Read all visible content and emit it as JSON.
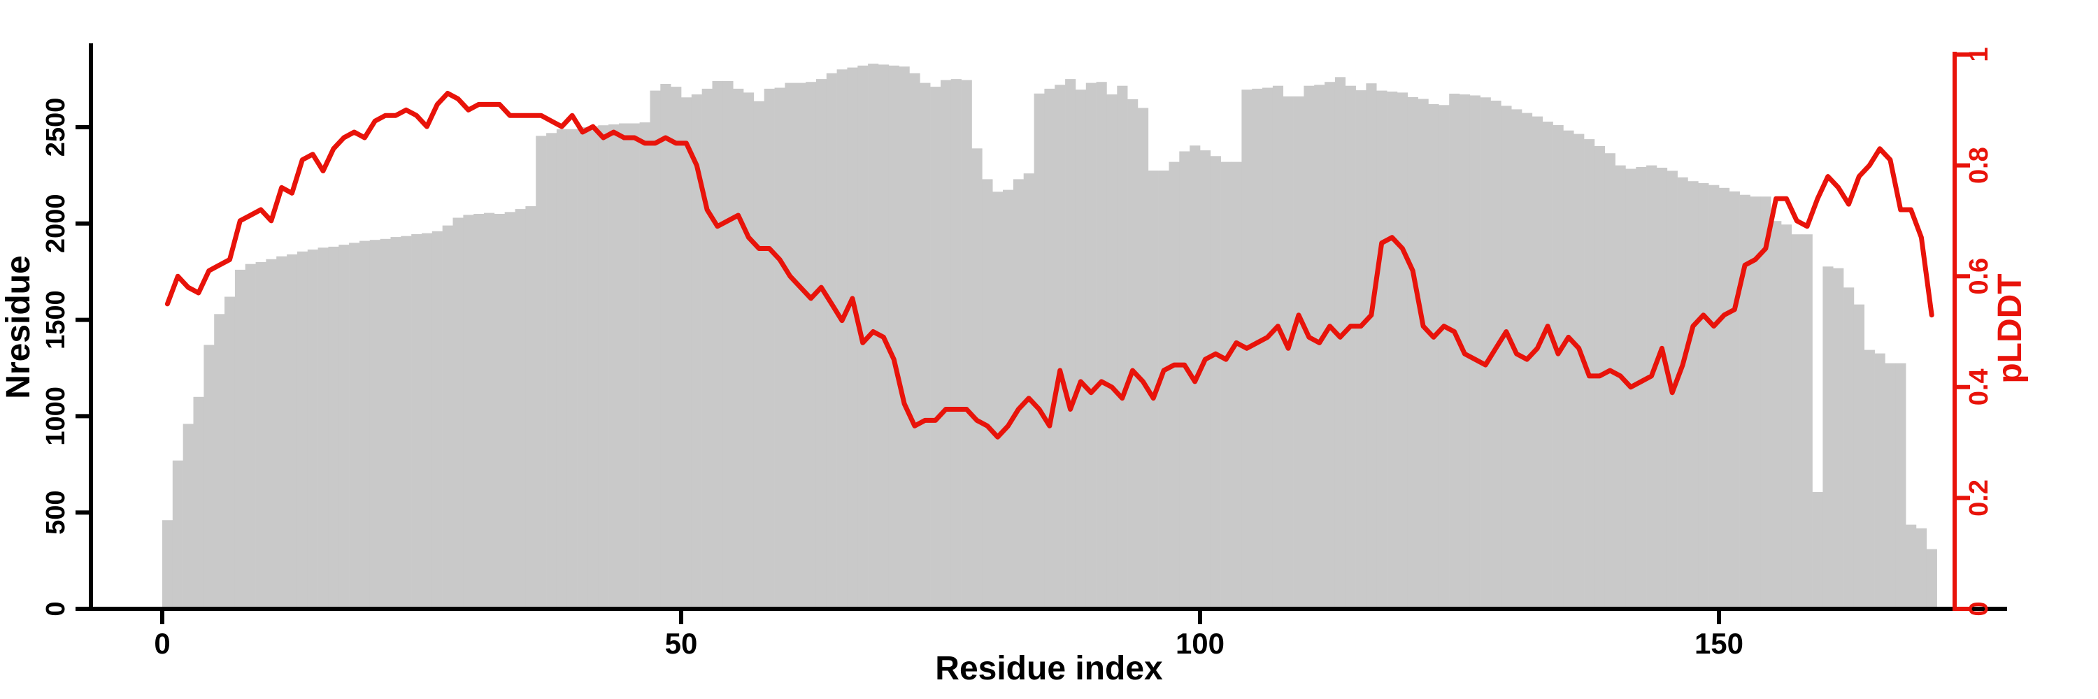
{
  "figure": {
    "background": "#ffffff",
    "bar_color": "#c9c9c9",
    "line_color": "#e8130a",
    "axis_color": "#000000"
  },
  "chart_data": {
    "type": "bar+line-dual-axis",
    "title": "",
    "xlabel": "Residue index",
    "ylabel_left": "Nresidue",
    "ylabel_right": "pLDDT",
    "x_tick_labels": [
      "0",
      "50",
      "100",
      "150"
    ],
    "x_tick_values": [
      0,
      50,
      100,
      150
    ],
    "left_tick_labels": [
      "0",
      "500",
      "1000",
      "1500",
      "2000",
      "2500"
    ],
    "left_tick_values": [
      0,
      500,
      1000,
      1500,
      2000,
      2500
    ],
    "right_tick_labels": [
      "0",
      "0.2",
      "0.4",
      "0.6",
      "0.8",
      "1"
    ],
    "right_tick_values": [
      0,
      0.2,
      0.4,
      0.6,
      0.8,
      1
    ],
    "left_axis_range": [
      0,
      2500
    ],
    "right_axis_range": [
      0,
      1
    ],
    "x_range": [
      0,
      171
    ],
    "grid": false,
    "legend": false,
    "residue_index_start": 1,
    "series": [
      {
        "name": "Nresidue",
        "type": "bar",
        "axis": "left",
        "color": "#c9c9c9",
        "values": [
          460,
          770,
          960,
          1100,
          1370,
          1530,
          1620,
          1760,
          1790,
          1800,
          1815,
          1830,
          1840,
          1855,
          1865,
          1875,
          1880,
          1890,
          1900,
          1910,
          1915,
          1920,
          1930,
          1935,
          1945,
          1950,
          1960,
          1990,
          2030,
          2045,
          2050,
          2055,
          2050,
          2060,
          2075,
          2090,
          2455,
          2470,
          2490,
          2490,
          2500,
          2505,
          2510,
          2515,
          2520,
          2520,
          2525,
          2690,
          2725,
          2710,
          2655,
          2670,
          2700,
          2740,
          2740,
          2700,
          2680,
          2635,
          2700,
          2705,
          2730,
          2730,
          2735,
          2750,
          2780,
          2800,
          2810,
          2820,
          2830,
          2825,
          2820,
          2815,
          2780,
          2730,
          2710,
          2745,
          2750,
          2745,
          2390,
          2230,
          2165,
          2175,
          2230,
          2260,
          2675,
          2700,
          2720,
          2750,
          2695,
          2730,
          2735,
          2670,
          2715,
          2645,
          2600,
          2275,
          2275,
          2320,
          2375,
          2405,
          2380,
          2350,
          2320,
          2320,
          2695,
          2700,
          2705,
          2715,
          2660,
          2660,
          2715,
          2720,
          2735,
          2760,
          2715,
          2692,
          2728,
          2690,
          2685,
          2680,
          2656,
          2647,
          2620,
          2615,
          2674,
          2670,
          2665,
          2655,
          2638,
          2611,
          2593,
          2574,
          2556,
          2529,
          2511,
          2483,
          2465,
          2438,
          2402,
          2365,
          2302,
          2284,
          2293,
          2302,
          2290,
          2274,
          2240,
          2220,
          2210,
          2200,
          2185,
          2167,
          2149,
          2140,
          2140,
          2013,
          1995,
          1944,
          1944,
          606,
          1777,
          1768,
          1668,
          1580,
          1344,
          1326,
          1275,
          1275,
          437,
          418,
          310
        ]
      },
      {
        "name": "pLDDT",
        "type": "line",
        "axis": "right",
        "color": "#e8130a",
        "values": [
          0.55,
          0.6,
          0.58,
          0.57,
          0.61,
          0.62,
          0.63,
          0.7,
          0.71,
          0.72,
          0.7,
          0.76,
          0.75,
          0.81,
          0.82,
          0.79,
          0.83,
          0.85,
          0.86,
          0.85,
          0.88,
          0.89,
          0.89,
          0.9,
          0.89,
          0.87,
          0.91,
          0.93,
          0.92,
          0.9,
          0.91,
          0.91,
          0.91,
          0.89,
          0.89,
          0.89,
          0.89,
          0.88,
          0.87,
          0.89,
          0.86,
          0.87,
          0.85,
          0.86,
          0.85,
          0.85,
          0.84,
          0.84,
          0.85,
          0.84,
          0.84,
          0.8,
          0.72,
          0.69,
          0.7,
          0.71,
          0.67,
          0.65,
          0.65,
          0.63,
          0.6,
          0.58,
          0.56,
          0.58,
          0.55,
          0.52,
          0.56,
          0.48,
          0.5,
          0.49,
          0.45,
          0.37,
          0.33,
          0.34,
          0.34,
          0.36,
          0.36,
          0.36,
          0.34,
          0.33,
          0.31,
          0.33,
          0.36,
          0.38,
          0.36,
          0.33,
          0.43,
          0.36,
          0.41,
          0.39,
          0.41,
          0.4,
          0.38,
          0.43,
          0.41,
          0.38,
          0.43,
          0.44,
          0.44,
          0.41,
          0.45,
          0.46,
          0.45,
          0.48,
          0.47,
          0.48,
          0.49,
          0.51,
          0.47,
          0.53,
          0.49,
          0.48,
          0.51,
          0.49,
          0.51,
          0.51,
          0.53,
          0.66,
          0.67,
          0.65,
          0.61,
          0.51,
          0.49,
          0.51,
          0.5,
          0.46,
          0.45,
          0.44,
          0.47,
          0.5,
          0.46,
          0.45,
          0.47,
          0.51,
          0.46,
          0.49,
          0.47,
          0.42,
          0.42,
          0.43,
          0.42,
          0.4,
          0.41,
          0.42,
          0.47,
          0.39,
          0.44,
          0.51,
          0.53,
          0.51,
          0.53,
          0.54,
          0.62,
          0.63,
          0.65,
          0.74,
          0.74,
          0.7,
          0.69,
          0.74,
          0.78,
          0.76,
          0.73,
          0.78,
          0.8,
          0.83,
          0.81,
          0.72,
          0.72,
          0.67,
          0.53
        ]
      }
    ]
  }
}
